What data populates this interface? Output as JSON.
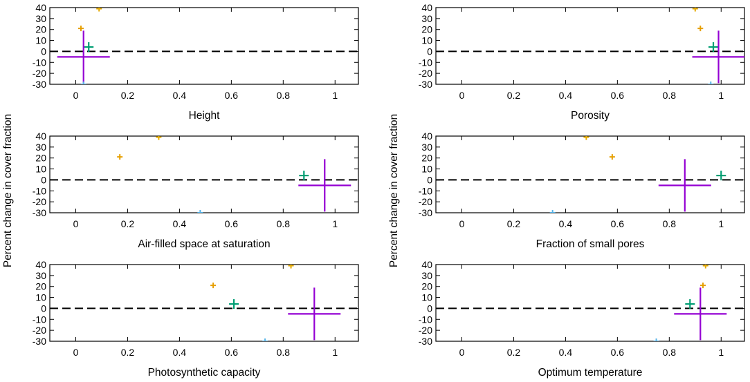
{
  "figure": {
    "ylabel_left": "Percent change in cover fraction",
    "ylabel_right": "Percent change in cover fraction"
  },
  "chart_data": [
    {
      "type": "scatter",
      "xlabel": "Height",
      "xlim": [
        -0.1,
        1.09
      ],
      "ylim": [
        -30,
        40
      ],
      "xticks": [
        "0",
        "0.2",
        "0.4",
        "0.6",
        "0.8",
        "1"
      ],
      "yticks": [
        "40",
        "30",
        "20",
        "10",
        "0",
        "-10",
        "-20",
        "-30"
      ],
      "reference_line": 0,
      "points": [
        {
          "x": 0.09,
          "y": 39,
          "color": "#e6ab02",
          "size": "small"
        },
        {
          "x": 0.02,
          "y": 21,
          "color": "#e69f00",
          "size": "small"
        },
        {
          "x": 0.05,
          "y": 4,
          "color": "#009e73",
          "size": "medium"
        },
        {
          "x": 0.03,
          "y": -5,
          "color": "#9400d3",
          "size": "large"
        },
        {
          "x": 0.03,
          "y": -30,
          "color": "#56b4e9",
          "size": "small"
        }
      ]
    },
    {
      "type": "scatter",
      "xlabel": "Porosity",
      "xlim": [
        -0.1,
        1.09
      ],
      "ylim": [
        -30,
        40
      ],
      "xticks": [
        "0",
        "0.2",
        "0.4",
        "0.6",
        "0.8",
        "1"
      ],
      "yticks": [
        "40",
        "30",
        "20",
        "10",
        "0",
        "-10",
        "-20",
        "-30"
      ],
      "reference_line": 0,
      "points": [
        {
          "x": 0.9,
          "y": 39,
          "color": "#e6ab02",
          "size": "small"
        },
        {
          "x": 0.92,
          "y": 21,
          "color": "#e69f00",
          "size": "small"
        },
        {
          "x": 0.97,
          "y": 4,
          "color": "#009e73",
          "size": "medium"
        },
        {
          "x": 0.99,
          "y": -5,
          "color": "#9400d3",
          "size": "large"
        },
        {
          "x": 0.96,
          "y": -30,
          "color": "#56b4e9",
          "size": "small"
        }
      ]
    },
    {
      "type": "scatter",
      "xlabel": "Air-filled space at saturation",
      "xlim": [
        -0.1,
        1.09
      ],
      "ylim": [
        -30,
        40
      ],
      "xticks": [
        "0",
        "0.2",
        "0.4",
        "0.6",
        "0.8",
        "1"
      ],
      "yticks": [
        "40",
        "30",
        "20",
        "10",
        "0",
        "-10",
        "-20",
        "-30"
      ],
      "reference_line": 0,
      "points": [
        {
          "x": 0.32,
          "y": 39,
          "color": "#e6ab02",
          "size": "small"
        },
        {
          "x": 0.17,
          "y": 21,
          "color": "#e69f00",
          "size": "small"
        },
        {
          "x": 0.88,
          "y": 4,
          "color": "#009e73",
          "size": "medium"
        },
        {
          "x": 0.96,
          "y": -5,
          "color": "#9400d3",
          "size": "large"
        },
        {
          "x": 0.48,
          "y": -30,
          "color": "#56b4e9",
          "size": "small"
        }
      ]
    },
    {
      "type": "scatter",
      "xlabel": "Fraction of small pores",
      "xlim": [
        -0.1,
        1.09
      ],
      "ylim": [
        -30,
        40
      ],
      "xticks": [
        "0",
        "0.2",
        "0.4",
        "0.6",
        "0.8",
        "1"
      ],
      "yticks": [
        "40",
        "30",
        "20",
        "10",
        "0",
        "-10",
        "-20",
        "-30"
      ],
      "reference_line": 0,
      "points": [
        {
          "x": 0.48,
          "y": 39,
          "color": "#e6ab02",
          "size": "small"
        },
        {
          "x": 0.58,
          "y": 21,
          "color": "#e69f00",
          "size": "small"
        },
        {
          "x": 1.0,
          "y": 4,
          "color": "#009e73",
          "size": "medium"
        },
        {
          "x": 0.86,
          "y": -5,
          "color": "#9400d3",
          "size": "large"
        },
        {
          "x": 0.35,
          "y": -30,
          "color": "#56b4e9",
          "size": "small"
        }
      ]
    },
    {
      "type": "scatter",
      "xlabel": "Photosynthetic capacity",
      "xlim": [
        -0.1,
        1.09
      ],
      "ylim": [
        -30,
        40
      ],
      "xticks": [
        "0",
        "0.2",
        "0.4",
        "0.6",
        "0.8",
        "1"
      ],
      "yticks": [
        "40",
        "30",
        "20",
        "10",
        "0",
        "-10",
        "-20",
        "-30"
      ],
      "reference_line": 0,
      "points": [
        {
          "x": 0.83,
          "y": 39,
          "color": "#e6ab02",
          "size": "small"
        },
        {
          "x": 0.53,
          "y": 21,
          "color": "#e69f00",
          "size": "small"
        },
        {
          "x": 0.61,
          "y": 4,
          "color": "#009e73",
          "size": "medium"
        },
        {
          "x": 0.92,
          "y": -5,
          "color": "#9400d3",
          "size": "large"
        },
        {
          "x": 0.73,
          "y": -30,
          "color": "#56b4e9",
          "size": "small"
        }
      ]
    },
    {
      "type": "scatter",
      "xlabel": "Optimum temperature",
      "xlim": [
        -0.1,
        1.09
      ],
      "ylim": [
        -30,
        40
      ],
      "xticks": [
        "0",
        "0.2",
        "0.4",
        "0.6",
        "0.8",
        "1"
      ],
      "yticks": [
        "40",
        "30",
        "20",
        "10",
        "0",
        "-10",
        "-20",
        "-30"
      ],
      "reference_line": 0,
      "points": [
        {
          "x": 0.94,
          "y": 39,
          "color": "#e6ab02",
          "size": "small"
        },
        {
          "x": 0.93,
          "y": 21,
          "color": "#e69f00",
          "size": "small"
        },
        {
          "x": 0.88,
          "y": 4,
          "color": "#009e73",
          "size": "medium"
        },
        {
          "x": 0.92,
          "y": -5,
          "color": "#9400d3",
          "size": "large"
        },
        {
          "x": 0.75,
          "y": -30,
          "color": "#56b4e9",
          "size": "small"
        }
      ]
    }
  ]
}
